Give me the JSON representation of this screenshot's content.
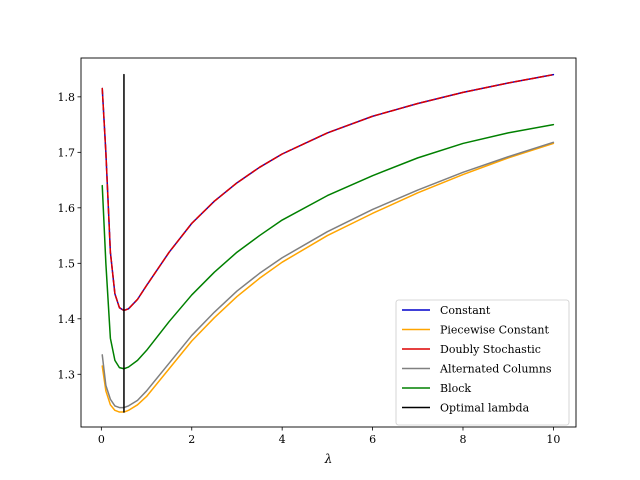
{
  "chart_data": {
    "type": "line",
    "title": "",
    "xlabel": "λ",
    "ylabel": "",
    "xlim": [
      -0.45,
      10.5
    ],
    "ylim": [
      1.205,
      1.87
    ],
    "xticks": [
      0,
      2,
      4,
      6,
      8,
      10
    ],
    "yticks": [
      1.3,
      1.4,
      1.5,
      1.6,
      1.7,
      1.8
    ],
    "xtick_labels": [
      "0",
      "2",
      "4",
      "6",
      "8",
      "10"
    ],
    "ytick_labels": [
      "1.3",
      "1.4",
      "1.5",
      "1.6",
      "1.7",
      "1.8"
    ],
    "grid": false,
    "legend_position": "lower-right",
    "series": [
      {
        "name": "Constant",
        "color": "#0000cc",
        "dashed": false,
        "x": [
          0.02,
          0.1,
          0.2,
          0.3,
          0.4,
          0.5,
          0.6,
          0.8,
          1.0,
          1.5,
          2.0,
          2.5,
          3.0,
          3.5,
          4.0,
          5.0,
          6.0,
          7.0,
          8.0,
          9.0,
          10.0
        ],
        "y": [
          1.815,
          1.7,
          1.52,
          1.445,
          1.42,
          1.415,
          1.418,
          1.435,
          1.46,
          1.52,
          1.572,
          1.612,
          1.645,
          1.673,
          1.697,
          1.735,
          1.765,
          1.788,
          1.808,
          1.825,
          1.84
        ]
      },
      {
        "name": "Piecewise Constant",
        "color": "#ffa500",
        "dashed": false,
        "x": [
          0.02,
          0.1,
          0.2,
          0.3,
          0.4,
          0.5,
          0.6,
          0.8,
          1.0,
          1.5,
          2.0,
          2.5,
          3.0,
          3.5,
          4.0,
          5.0,
          6.0,
          7.0,
          8.0,
          9.0,
          10.0
        ],
        "y": [
          1.315,
          1.27,
          1.245,
          1.235,
          1.232,
          1.232,
          1.235,
          1.245,
          1.26,
          1.31,
          1.36,
          1.402,
          1.44,
          1.473,
          1.502,
          1.55,
          1.59,
          1.627,
          1.66,
          1.69,
          1.716
        ]
      },
      {
        "name": "Doubly Stochastic",
        "color": "#dd0000",
        "dashed": true,
        "x": [
          0.02,
          0.1,
          0.2,
          0.3,
          0.4,
          0.5,
          0.6,
          0.8,
          1.0,
          1.5,
          2.0,
          2.5,
          3.0,
          3.5,
          4.0,
          5.0,
          6.0,
          7.0,
          8.0,
          9.0,
          10.0
        ],
        "y": [
          1.815,
          1.7,
          1.52,
          1.445,
          1.42,
          1.415,
          1.418,
          1.435,
          1.46,
          1.52,
          1.572,
          1.612,
          1.645,
          1.673,
          1.697,
          1.735,
          1.765,
          1.788,
          1.808,
          1.825,
          1.84
        ]
      },
      {
        "name": "Alternated Columns",
        "color": "#808080",
        "dashed": false,
        "x": [
          0.02,
          0.1,
          0.2,
          0.3,
          0.4,
          0.5,
          0.6,
          0.8,
          1.0,
          1.5,
          2.0,
          2.5,
          3.0,
          3.5,
          4.0,
          5.0,
          6.0,
          7.0,
          8.0,
          9.0,
          10.0
        ],
        "y": [
          1.335,
          1.28,
          1.255,
          1.243,
          1.24,
          1.24,
          1.243,
          1.253,
          1.27,
          1.32,
          1.37,
          1.412,
          1.45,
          1.482,
          1.51,
          1.557,
          1.597,
          1.632,
          1.664,
          1.692,
          1.718
        ]
      },
      {
        "name": "Block",
        "color": "#008000",
        "dashed": false,
        "x": [
          0.02,
          0.1,
          0.2,
          0.3,
          0.4,
          0.5,
          0.6,
          0.8,
          1.0,
          1.5,
          2.0,
          2.5,
          3.0,
          3.5,
          4.0,
          5.0,
          6.0,
          7.0,
          8.0,
          9.0,
          10.0
        ],
        "y": [
          1.64,
          1.5,
          1.365,
          1.325,
          1.312,
          1.31,
          1.313,
          1.325,
          1.343,
          1.395,
          1.443,
          1.484,
          1.52,
          1.55,
          1.578,
          1.622,
          1.658,
          1.69,
          1.716,
          1.735,
          1.75
        ]
      },
      {
        "name": "Optimal lambda",
        "color": "#000000",
        "dashed": false,
        "x": [
          0.5,
          0.5
        ],
        "y": [
          1.232,
          1.84
        ]
      }
    ]
  }
}
